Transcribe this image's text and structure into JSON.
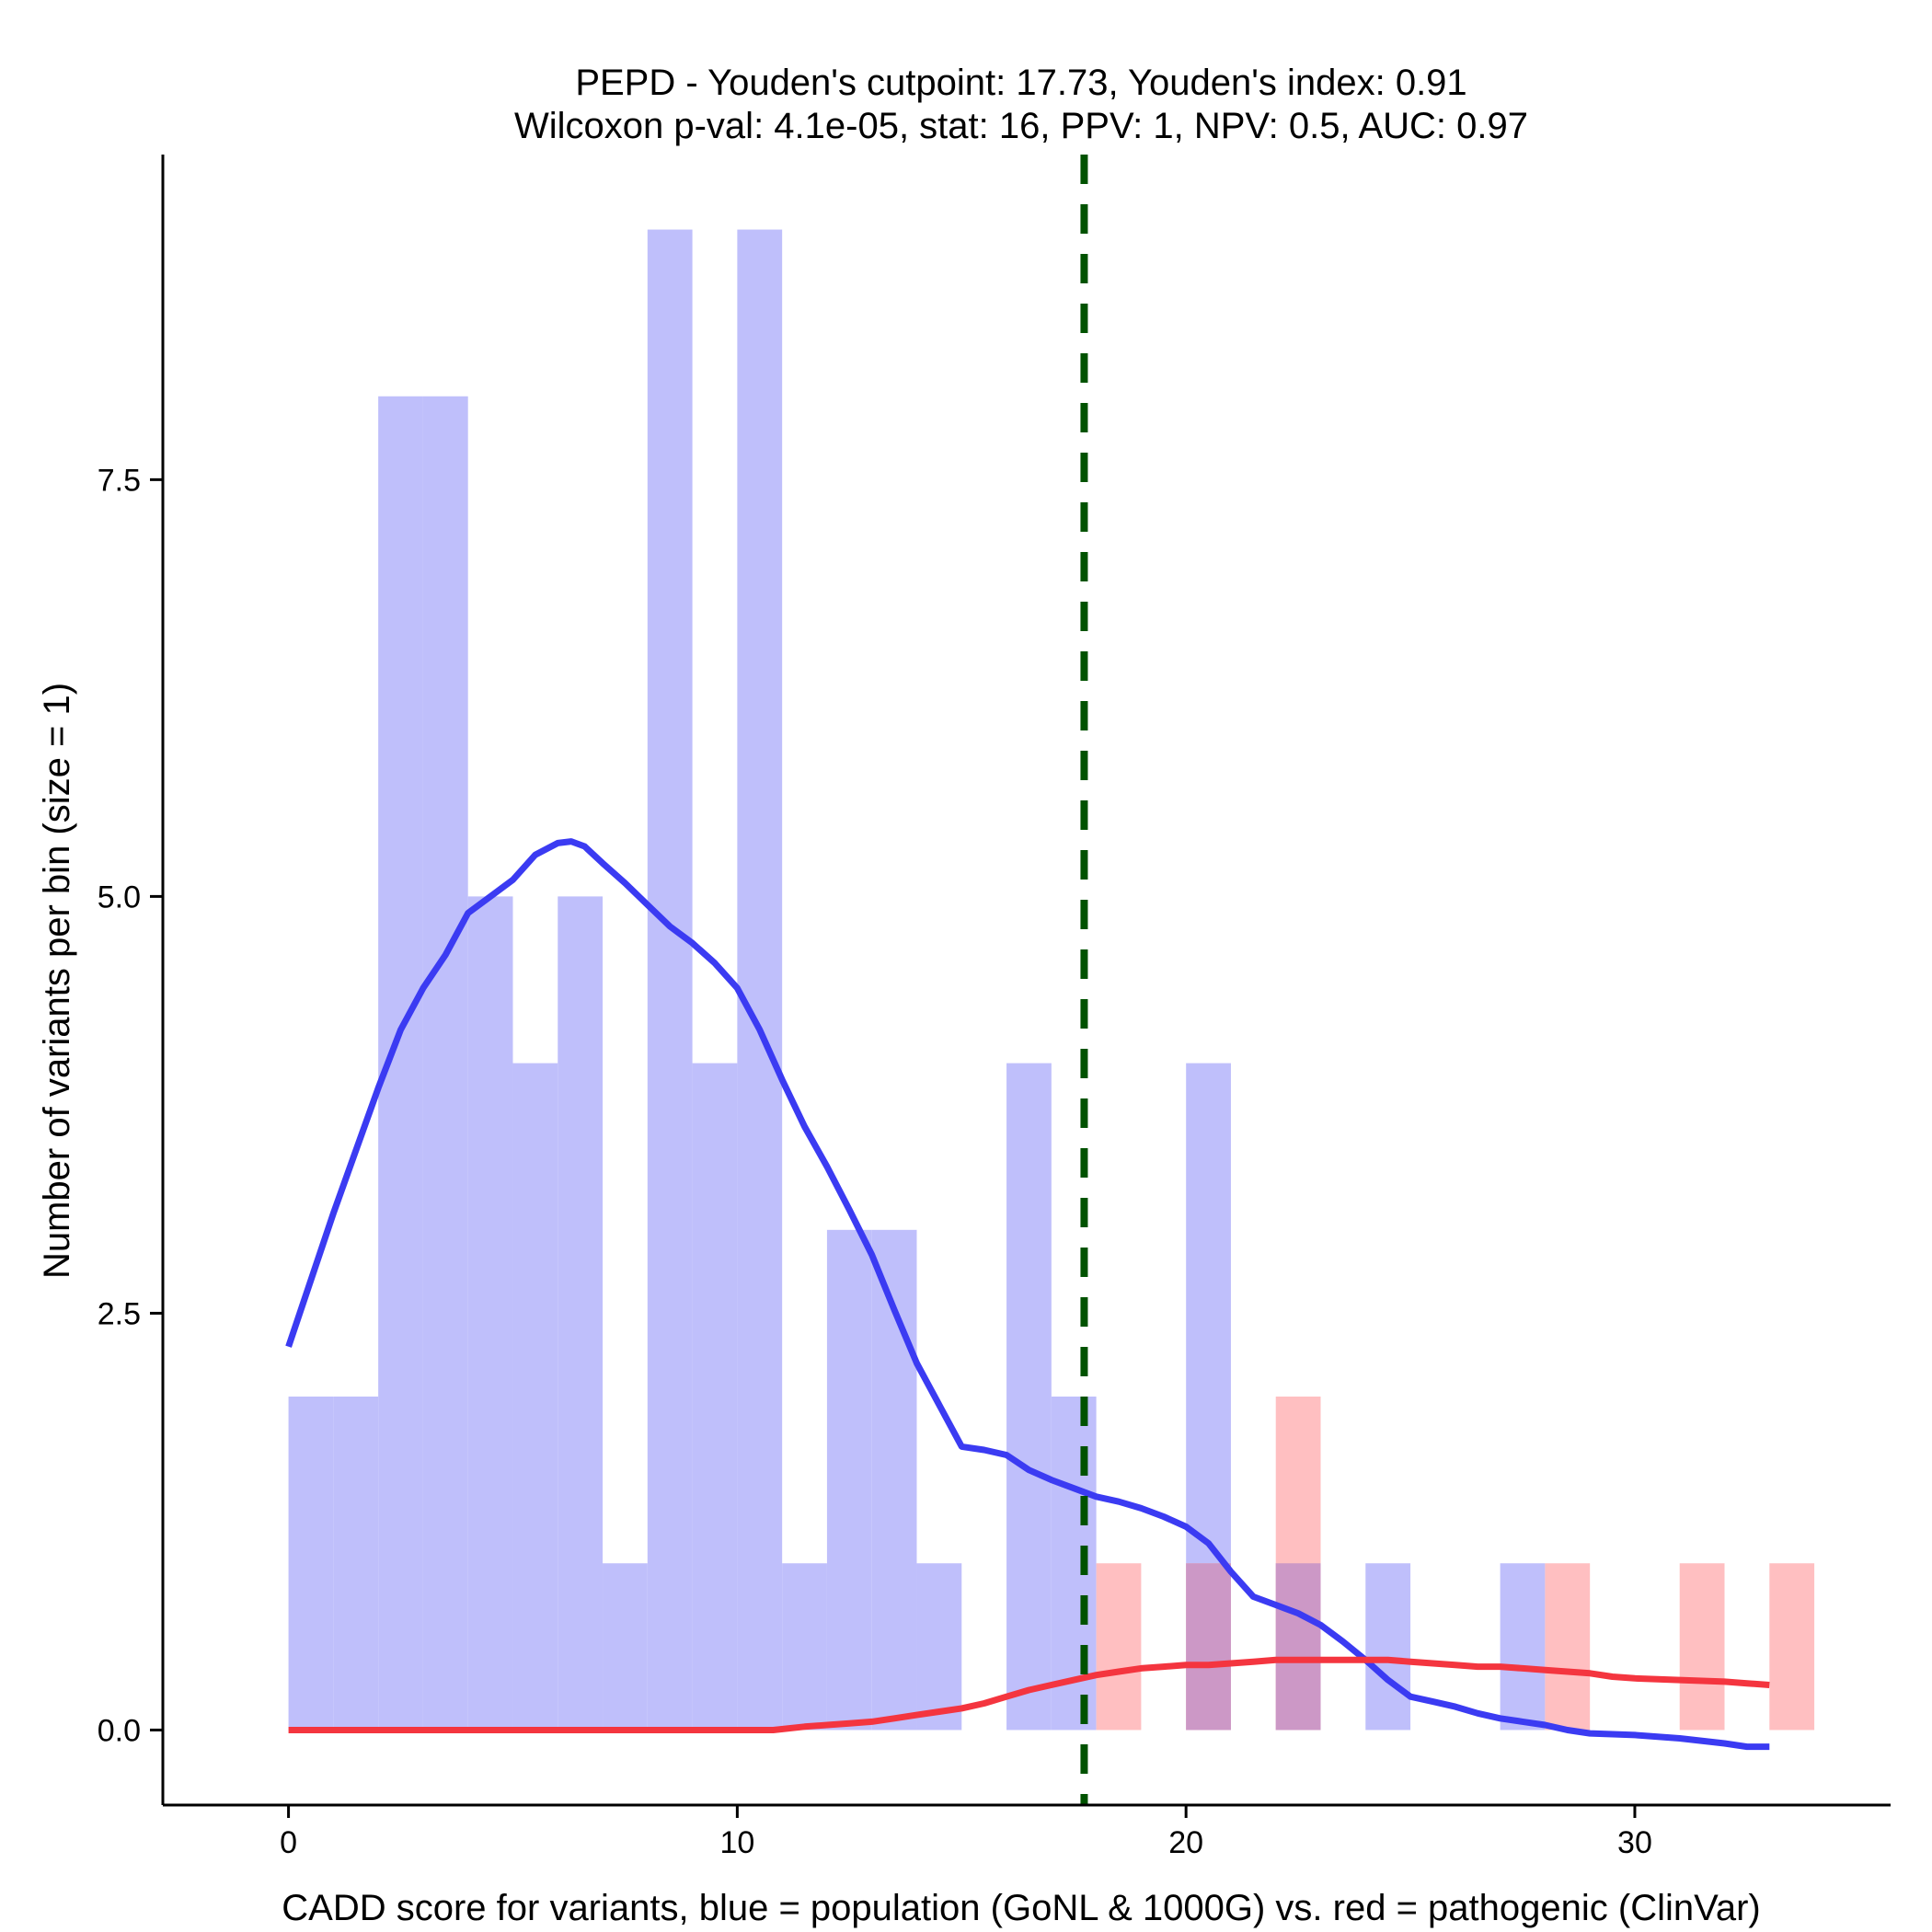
{
  "chart_data": {
    "type": "histogram",
    "title": "PEPD - Youden's cutpoint: 17.73, Youden's index: 0.91",
    "subtitle": "Wilcoxon p-val: 4.1e-05, stat: 16, PPV: 1, NPV: 0.5, AUC: 0.97",
    "xlabel": "CADD score for variants, blue = population (GoNL & 1000G) vs. red = pathogenic (ClinVar)",
    "ylabel": "Number of variants per bin (size = 1)",
    "xlim": [
      -2.8,
      35.7
    ],
    "ylim": [
      -0.45,
      9.45
    ],
    "xticks": [
      0,
      10,
      20,
      30
    ],
    "xtick_labels": [
      "0",
      "10",
      "20",
      "30"
    ],
    "yticks": [
      0,
      2.5,
      5,
      7.5
    ],
    "ytick_labels": [
      "0.0",
      "2.5",
      "5.0",
      "7.5"
    ],
    "bin_width": 1,
    "cutpoint": 17.73,
    "colors": {
      "population_bar": "#bfbffb",
      "pathogenic_bar": "#ffbfc1",
      "overlap_bar": "#cc98c6",
      "population_line": "#3b3bf2",
      "pathogenic_line": "#f4353f",
      "cutpoint_line": "#005200"
    },
    "series": [
      {
        "name": "population (GoNL & 1000G)",
        "bins": [
          {
            "x0": 0,
            "count": 2
          },
          {
            "x0": 1,
            "count": 2
          },
          {
            "x0": 2,
            "count": 8
          },
          {
            "x0": 3,
            "count": 8
          },
          {
            "x0": 4,
            "count": 5
          },
          {
            "x0": 5,
            "count": 4
          },
          {
            "x0": 6,
            "count": 5
          },
          {
            "x0": 7,
            "count": 1
          },
          {
            "x0": 8,
            "count": 9
          },
          {
            "x0": 9,
            "count": 4
          },
          {
            "x0": 10,
            "count": 9
          },
          {
            "x0": 11,
            "count": 1
          },
          {
            "x0": 12,
            "count": 3
          },
          {
            "x0": 13,
            "count": 3
          },
          {
            "x0": 14,
            "count": 1
          },
          {
            "x0": 16,
            "count": 4
          },
          {
            "x0": 17,
            "count": 2
          },
          {
            "x0": 20,
            "count": 4
          },
          {
            "x0": 22,
            "count": 1
          },
          {
            "x0": 24,
            "count": 1
          },
          {
            "x0": 27,
            "count": 1
          }
        ],
        "density": {
          "x": [
            0,
            1,
            2,
            2.5,
            3,
            3.5,
            4,
            4.5,
            5,
            5.5,
            6,
            6.3,
            6.6,
            7,
            7.5,
            8,
            8.5,
            9,
            9.5,
            10,
            10.5,
            11,
            11.5,
            12,
            12.5,
            13,
            13.5,
            14,
            14.5,
            15,
            15.5,
            16,
            16.5,
            17,
            17.5,
            18,
            18.5,
            19,
            19.5,
            20,
            20.5,
            21,
            21.5,
            22,
            22.5,
            23,
            23.5,
            24,
            24.5,
            25,
            25.5,
            26,
            26.5,
            27,
            27.5,
            28,
            28.5,
            29,
            30,
            31,
            32,
            32.5,
            33
          ],
          "y": [
            2.3,
            3.1,
            3.85,
            4.2,
            4.45,
            4.65,
            4.9,
            5.0,
            5.1,
            5.25,
            5.32,
            5.33,
            5.3,
            5.2,
            5.08,
            4.95,
            4.82,
            4.72,
            4.6,
            4.45,
            4.2,
            3.9,
            3.62,
            3.38,
            3.12,
            2.85,
            2.52,
            2.2,
            1.95,
            1.7,
            1.68,
            1.65,
            1.56,
            1.5,
            1.45,
            1.4,
            1.37,
            1.33,
            1.28,
            1.22,
            1.12,
            0.95,
            0.8,
            0.75,
            0.7,
            0.63,
            0.53,
            0.42,
            0.3,
            0.2,
            0.17,
            0.14,
            0.1,
            0.07,
            0.05,
            0.03,
            0.0,
            -0.02,
            -0.03,
            -0.05,
            -0.08,
            -0.1,
            -0.1
          ]
        }
      },
      {
        "name": "pathogenic (ClinVar)",
        "bins": [
          {
            "x0": 18,
            "count": 1
          },
          {
            "x0": 20,
            "count": 1
          },
          {
            "x0": 22,
            "count": 2
          },
          {
            "x0": 28,
            "count": 1
          },
          {
            "x0": 31,
            "count": 1
          },
          {
            "x0": 33,
            "count": 1
          }
        ],
        "density": {
          "x": [
            0,
            2,
            4,
            6,
            8,
            10,
            10.8,
            11.5,
            12,
            12.5,
            13,
            13.5,
            14,
            14.5,
            15,
            15.5,
            16,
            16.5,
            17,
            17.5,
            18,
            18.5,
            19,
            19.5,
            20,
            20.5,
            21,
            21.5,
            22,
            22.5,
            23,
            23.5,
            24,
            24.5,
            25,
            25.5,
            26,
            26.5,
            27,
            27.5,
            28,
            28.5,
            29,
            29.5,
            30,
            31,
            32,
            32.5,
            33
          ],
          "y": [
            0.0,
            0.0,
            0.0,
            0.0,
            0.0,
            0.0,
            0.0,
            0.02,
            0.03,
            0.04,
            0.05,
            0.07,
            0.09,
            0.11,
            0.13,
            0.16,
            0.2,
            0.24,
            0.27,
            0.3,
            0.33,
            0.35,
            0.37,
            0.38,
            0.39,
            0.39,
            0.4,
            0.41,
            0.42,
            0.42,
            0.42,
            0.42,
            0.42,
            0.42,
            0.41,
            0.4,
            0.39,
            0.38,
            0.38,
            0.37,
            0.36,
            0.35,
            0.34,
            0.32,
            0.31,
            0.3,
            0.29,
            0.28,
            0.27
          ]
        }
      }
    ]
  }
}
